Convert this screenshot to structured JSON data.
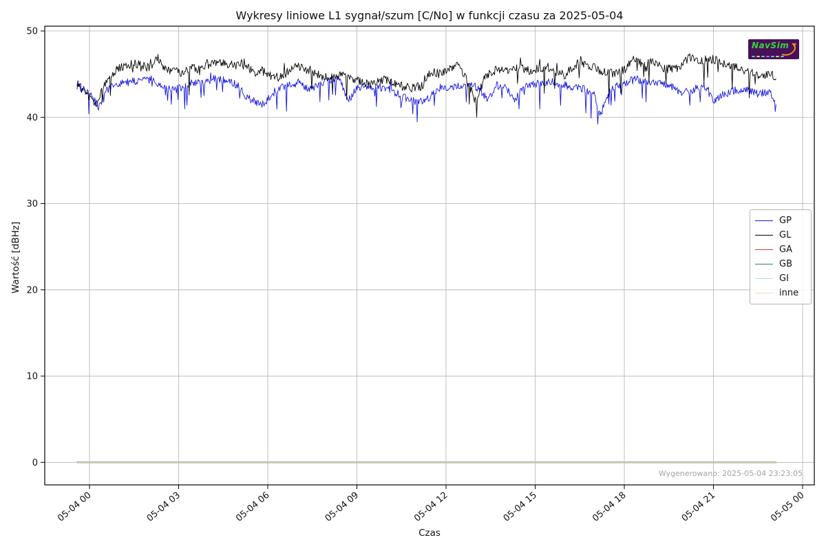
{
  "chart_data": {
    "type": "line",
    "title": "Wykresy liniowe L1 sygnał/szum [C/No] w funkcji czasu za 2025-05-04",
    "xlabel": "Czas",
    "ylabel": "Wartość [dBHz]",
    "x_tick_labels": [
      "05-04 00",
      "05-04 03",
      "05-04 06",
      "05-04 09",
      "05-04 12",
      "05-04 15",
      "05-04 18",
      "05-04 21",
      "05-05 00"
    ],
    "x_tick_hours": [
      0,
      3,
      6,
      9,
      12,
      15,
      18,
      21,
      24
    ],
    "y_ticks": [
      0,
      10,
      20,
      30,
      40,
      50
    ],
    "xlim_hours": [
      -1.506,
      24.394
    ],
    "ylim": [
      -2.61,
      50.56
    ],
    "grid": true,
    "grid_color": "#b0b0b0",
    "frame_color": "#000000",
    "tick_color": "#000000",
    "data_t_range": [
      -0.42,
      23.12
    ],
    "legend": {
      "position": "center-right",
      "entries": [
        "GP",
        "GL",
        "GA",
        "GB",
        "GI",
        "inne"
      ]
    },
    "series": [
      {
        "name": "GP",
        "color": "#1212e0",
        "width": 0.9,
        "noise": {
          "amp": 0.45,
          "dip_p": 0.05,
          "dip_d": 2.1,
          "up_p": 0.012,
          "up_d": 0.8
        },
        "anchors": [
          [
            -0.42,
            43.9
          ],
          [
            -0.2,
            43.4
          ],
          [
            0,
            42.8
          ],
          [
            0.3,
            41.2
          ],
          [
            0.6,
            43.2
          ],
          [
            1.0,
            43.9
          ],
          [
            1.4,
            44.1
          ],
          [
            1.8,
            44.3
          ],
          [
            2.1,
            44.4
          ],
          [
            2.5,
            43.3
          ],
          [
            2.9,
            43.2
          ],
          [
            3.2,
            43.6
          ],
          [
            3.6,
            44.0
          ],
          [
            4.0,
            44.3
          ],
          [
            4.3,
            44.5
          ],
          [
            4.7,
            44.1
          ],
          [
            5.0,
            43.7
          ],
          [
            5.3,
            42.3
          ],
          [
            5.6,
            41.8
          ],
          [
            5.9,
            41.5
          ],
          [
            6.2,
            42.9
          ],
          [
            6.6,
            43.7
          ],
          [
            7.0,
            43.9
          ],
          [
            7.4,
            43.3
          ],
          [
            7.8,
            43.8
          ],
          [
            8.1,
            44.3
          ],
          [
            8.4,
            44.7
          ],
          [
            8.7,
            42.0
          ],
          [
            9.0,
            43.3
          ],
          [
            9.4,
            43.6
          ],
          [
            9.8,
            43.5
          ],
          [
            10.2,
            43.0
          ],
          [
            10.6,
            42.3
          ],
          [
            11.0,
            41.7
          ],
          [
            11.3,
            41.9
          ],
          [
            11.7,
            43.1
          ],
          [
            12.0,
            43.4
          ],
          [
            12.4,
            43.6
          ],
          [
            12.8,
            43.7
          ],
          [
            13.1,
            43.4
          ],
          [
            13.4,
            42.0
          ],
          [
            13.7,
            43.7
          ],
          [
            14.0,
            43.5
          ],
          [
            14.3,
            42.0
          ],
          [
            14.7,
            43.8
          ],
          [
            15.1,
            43.9
          ],
          [
            15.5,
            44.2
          ],
          [
            15.9,
            43.8
          ],
          [
            16.3,
            43.5
          ],
          [
            16.7,
            43.2
          ],
          [
            17.0,
            42.5
          ],
          [
            17.2,
            40.2
          ],
          [
            17.5,
            43.3
          ],
          [
            18.0,
            43.9
          ],
          [
            18.3,
            44.5
          ],
          [
            18.7,
            44.1
          ],
          [
            19.1,
            43.9
          ],
          [
            19.5,
            43.8
          ],
          [
            19.9,
            42.8
          ],
          [
            20.3,
            43.2
          ],
          [
            20.7,
            43.6
          ],
          [
            21.0,
            42.0
          ],
          [
            21.3,
            42.6
          ],
          [
            21.7,
            43.1
          ],
          [
            22.1,
            43.2
          ],
          [
            22.5,
            42.7
          ],
          [
            22.9,
            43.0
          ],
          [
            23.12,
            41.2
          ]
        ]
      },
      {
        "name": "GL",
        "color": "#000000",
        "width": 0.9,
        "noise": {
          "amp": 0.5,
          "dip_p": 0.04,
          "dip_d": 2.2,
          "up_p": 0.02,
          "up_d": 1.0
        },
        "anchors": [
          [
            -0.42,
            43.6
          ],
          [
            -0.2,
            43.2
          ],
          [
            0,
            42.4
          ],
          [
            0.2,
            41.3
          ],
          [
            0.4,
            43.2
          ],
          [
            0.7,
            44.9
          ],
          [
            1.0,
            45.8
          ],
          [
            1.3,
            46.1
          ],
          [
            1.6,
            46.2
          ],
          [
            2.0,
            45.7
          ],
          [
            2.3,
            46.9
          ],
          [
            2.5,
            45.6
          ],
          [
            2.8,
            45.4
          ],
          [
            3.1,
            45.2
          ],
          [
            3.4,
            45.8
          ],
          [
            3.7,
            45.5
          ],
          [
            4.0,
            46.1
          ],
          [
            4.3,
            46.4
          ],
          [
            4.6,
            46.2
          ],
          [
            5.0,
            45.9
          ],
          [
            5.2,
            46.5
          ],
          [
            5.5,
            45.1
          ],
          [
            5.8,
            45.4
          ],
          [
            6.1,
            44.8
          ],
          [
            6.4,
            44.6
          ],
          [
            6.7,
            45.3
          ],
          [
            7.0,
            45.9
          ],
          [
            7.3,
            45.4
          ],
          [
            7.6,
            45.0
          ],
          [
            8.0,
            44.6
          ],
          [
            8.3,
            45.0
          ],
          [
            8.6,
            44.8
          ],
          [
            9.0,
            44.3
          ],
          [
            9.4,
            43.9
          ],
          [
            9.7,
            44.2
          ],
          [
            10.0,
            44.4
          ],
          [
            10.4,
            43.7
          ],
          [
            10.8,
            43.4
          ],
          [
            11.2,
            43.6
          ],
          [
            11.5,
            45.3
          ],
          [
            11.8,
            45.0
          ],
          [
            12.1,
            45.6
          ],
          [
            12.4,
            46.2
          ],
          [
            12.7,
            44.3
          ],
          [
            13.0,
            41.8
          ],
          [
            13.3,
            44.6
          ],
          [
            13.6,
            45.4
          ],
          [
            14.0,
            45.5
          ],
          [
            14.4,
            45.8
          ],
          [
            14.8,
            45.4
          ],
          [
            15.2,
            45.7
          ],
          [
            15.6,
            45.3
          ],
          [
            16.0,
            44.9
          ],
          [
            16.4,
            46.2
          ],
          [
            16.8,
            46.0
          ],
          [
            17.2,
            45.4
          ],
          [
            17.6,
            45.1
          ],
          [
            18.0,
            45.5
          ],
          [
            18.3,
            46.8
          ],
          [
            18.6,
            46.1
          ],
          [
            19.0,
            46.4
          ],
          [
            19.4,
            45.6
          ],
          [
            19.8,
            45.7
          ],
          [
            20.2,
            47.0
          ],
          [
            20.5,
            46.6
          ],
          [
            21.0,
            46.7
          ],
          [
            21.4,
            46.1
          ],
          [
            21.8,
            45.8
          ],
          [
            22.2,
            45.2
          ],
          [
            22.6,
            44.8
          ],
          [
            23.0,
            45.0
          ],
          [
            23.12,
            44.3
          ]
        ]
      },
      {
        "name": "GA",
        "color": "#bf4540",
        "width": 2.0,
        "flat": 0
      },
      {
        "name": "GB",
        "color": "#2e8b57",
        "width": 1.6,
        "flat": 0
      },
      {
        "name": "GI",
        "color": "#b9d6e8",
        "width": 1.0,
        "flat": 0
      },
      {
        "name": "inne",
        "color": "#efd7a8",
        "width": 1.2,
        "flat": 0
      }
    ],
    "generated_text": "Wygenerowano: 2025-05-04 23:23:05"
  },
  "logo": {
    "text": "NavSim",
    "bg_color": "#471059",
    "text_color": "#3fca4a",
    "swoosh_color": "#f08a1e",
    "subtext_colors": [
      "#58c8e8",
      "#e8d44a",
      "#58c8e8",
      "#b06ae0",
      "#58c8e8",
      "#e8d44a",
      "#58c8e8"
    ]
  }
}
